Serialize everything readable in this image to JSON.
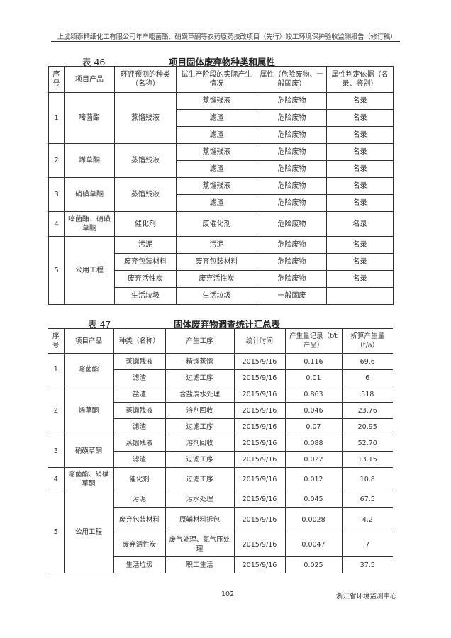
{
  "header": "上虞颖泰精细化工有限公司年产嘧菌酯、硝磺草酮等农药原药技改项目（先行）竣工环境保护验收监测报告（修订稿）",
  "table46": {
    "label": "表 46",
    "title": "项目固体废弃物种类和属性",
    "columns": [
      "序号",
      "项目产品",
      "环评预测的种类（名称）",
      "试生产阶段的实际产生情况",
      "属性（危险废物、一般固废）",
      "属性判定依据（名录、鉴别）"
    ],
    "groups": [
      {
        "no": "1",
        "product": "嘧菌酯",
        "predicted": [
          "蒸馏残液"
        ],
        "rows": [
          [
            "蒸馏残液",
            "危险废物",
            "名录"
          ],
          [
            "滤渣",
            "危险废物",
            "名录"
          ],
          [
            "滤渣",
            "危险废物",
            "名录"
          ]
        ]
      },
      {
        "no": "2",
        "product": "烯草酮",
        "predicted": [
          "蒸馏残液"
        ],
        "rows": [
          [
            "蒸馏残液",
            "危险废物",
            "名录"
          ],
          [
            "滤渣",
            "危险废物",
            "名录"
          ]
        ]
      },
      {
        "no": "3",
        "product": "硝磺草酮",
        "predicted": [
          "蒸馏残液"
        ],
        "rows": [
          [
            "蒸馏残液",
            "危险废物",
            "名录"
          ],
          [
            "滤渣",
            "危险废物",
            "名录"
          ]
        ]
      },
      {
        "no": "4",
        "product": "嘧菌酯、硝磺草酮",
        "predicted": [
          "催化剂"
        ],
        "rows": [
          [
            "废催化剂",
            "危险废物",
            "名录"
          ]
        ]
      },
      {
        "no": "5",
        "product": "公用工程",
        "rows": [
          [
            "污泥",
            "污泥",
            "危险废物",
            "名录"
          ],
          [
            "废弃包装材料",
            "废弃包装材料",
            "危险废物",
            "名录"
          ],
          [
            "废弃活性炭",
            "废弃活性炭",
            "危险废物",
            "名录"
          ],
          [
            "生活垃圾",
            "生活垃圾",
            "一般固废",
            ""
          ]
        ]
      }
    ]
  },
  "table47": {
    "label": "表 47",
    "title": "固体废弃物调查统计汇总表",
    "columns": [
      "序号",
      "项目产品",
      "种类（名称）",
      "产生工序",
      "统计时间",
      "产生量记录（t/t产品）",
      "折算产生量（t/a）"
    ],
    "groups": [
      {
        "no": "1",
        "product": "嘧菌酯",
        "rows": [
          [
            "蒸馏残液",
            "精馏蒸馏",
            "2015/9/16",
            "0.116",
            "69.6"
          ],
          [
            "滤渣",
            "过滤工序",
            "2015/9/16",
            "0.01",
            "6"
          ]
        ]
      },
      {
        "no": "2",
        "product": "烯草酮",
        "rows": [
          [
            "盐渣",
            "含盐废水处理",
            "2015/9/16",
            "0.863",
            "518"
          ],
          [
            "蒸馏残液",
            "溶剂回收",
            "2015/9/16",
            "0.046",
            "23.76"
          ],
          [
            "滤渣",
            "过滤工序",
            "2015/9/16",
            "0.07",
            "20.95"
          ]
        ]
      },
      {
        "no": "3",
        "product": "硝磺草酮",
        "rows": [
          [
            "蒸馏残液",
            "溶剂回收",
            "2015/9/16",
            "0.088",
            "52.70"
          ],
          [
            "滤渣",
            "过滤工序",
            "2015/9/16",
            "0.022",
            "13.15"
          ]
        ]
      },
      {
        "no": "4",
        "product": "嘧菌酯、硝磺草酮",
        "rows": [
          [
            "催化剂",
            "过滤工序",
            "2015/9/16",
            "0.012",
            "10.8"
          ]
        ]
      },
      {
        "no": "5",
        "product": "公用工程",
        "rows": [
          [
            "污泥",
            "污水处理",
            "2015/9/16",
            "0.045",
            "67.5"
          ],
          [
            "废弃包装材料",
            "原辅材料拆包",
            "2015/9/16",
            "0.0028",
            "4.2"
          ],
          [
            "废弃活性炭",
            "废气处理、氮气压处理",
            "2015/9/16",
            "0.0047",
            "7"
          ],
          [
            "生活垃圾",
            "职工生活",
            "2015/9/16",
            "0.025",
            "37.5"
          ]
        ]
      }
    ]
  },
  "footer": {
    "page": "102",
    "org": "浙江省环境监测中心"
  }
}
